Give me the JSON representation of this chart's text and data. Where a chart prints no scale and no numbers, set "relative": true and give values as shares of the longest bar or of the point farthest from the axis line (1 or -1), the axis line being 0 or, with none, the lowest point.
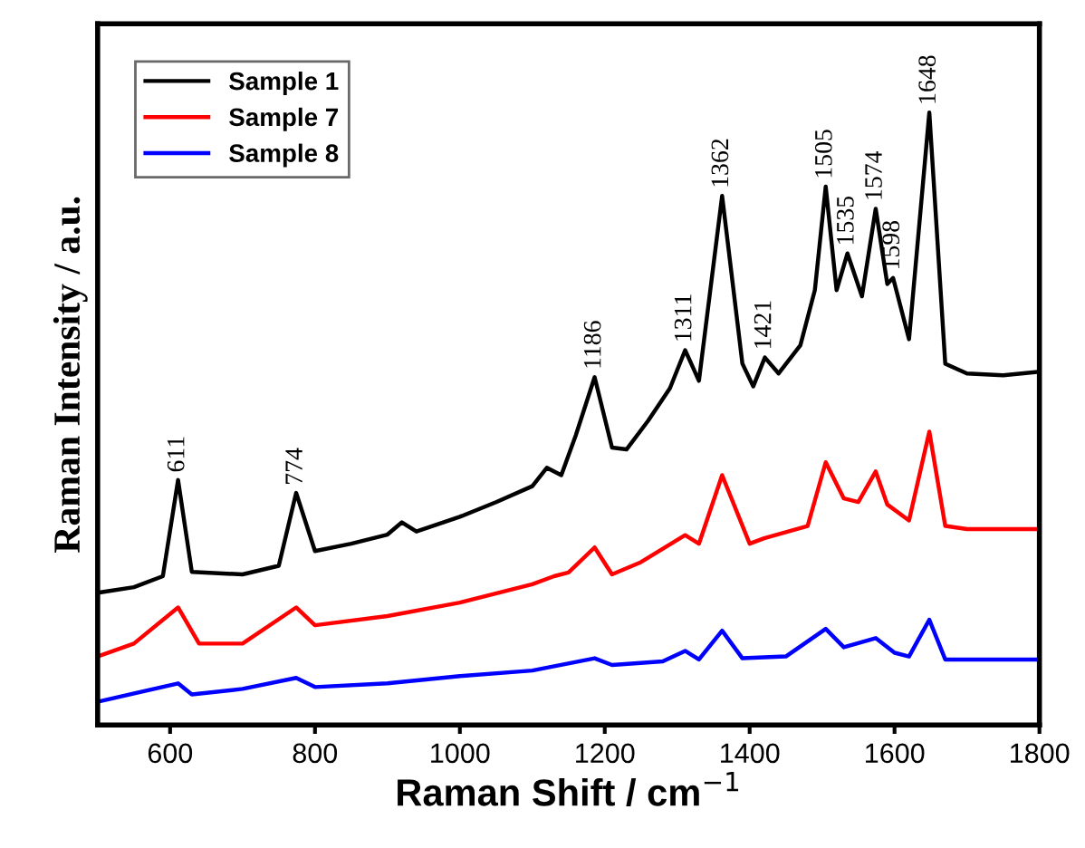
{
  "chart_data": {
    "type": "line",
    "relative": true,
    "xlabel": "Raman Shift / cm$^{−1}$",
    "ylabel": "Raman Intensity / a.u.",
    "xlim": [
      500,
      1800
    ],
    "xticks": [
      600,
      800,
      1000,
      1200,
      1400,
      1600,
      1800
    ],
    "legend": "top left",
    "grid": false,
    "marker": "none",
    "line_style": "solid",
    "series": [
      {
        "name": "Sample 1",
        "color": "#000000",
        "x": [
          500,
          550,
          590,
          611,
          630,
          700,
          750,
          774,
          800,
          850,
          900,
          920,
          940,
          1000,
          1050,
          1100,
          1120,
          1140,
          1160,
          1186,
          1210,
          1230,
          1260,
          1290,
          1311,
          1330,
          1362,
          1390,
          1405,
          1421,
          1440,
          1470,
          1490,
          1505,
          1520,
          1535,
          1555,
          1574,
          1590,
          1598,
          1620,
          1648,
          1670,
          1700,
          1750,
          1800
        ],
        "values": [
          0.216,
          0.225,
          0.243,
          0.4,
          0.25,
          0.246,
          0.26,
          0.379,
          0.284,
          0.296,
          0.311,
          0.331,
          0.316,
          0.34,
          0.364,
          0.39,
          0.42,
          0.408,
          0.473,
          0.568,
          0.453,
          0.45,
          0.497,
          0.55,
          0.612,
          0.562,
          0.864,
          0.59,
          0.553,
          0.6,
          0.574,
          0.62,
          0.71,
          0.879,
          0.71,
          0.77,
          0.7,
          0.843,
          0.72,
          0.73,
          0.63,
          1.0,
          0.59,
          0.574,
          0.571,
          0.577
        ]
      },
      {
        "name": "Sample 7",
        "color": "#ff0000",
        "x": [
          500,
          550,
          611,
          640,
          700,
          774,
          800,
          900,
          1000,
          1100,
          1130,
          1150,
          1186,
          1210,
          1250,
          1311,
          1330,
          1362,
          1400,
          1420,
          1480,
          1505,
          1530,
          1550,
          1574,
          1590,
          1620,
          1648,
          1670,
          1700,
          1800
        ],
        "values": [
          0.112,
          0.133,
          0.192,
          0.133,
          0.133,
          0.192,
          0.163,
          0.178,
          0.2,
          0.23,
          0.243,
          0.249,
          0.29,
          0.246,
          0.266,
          0.31,
          0.296,
          0.408,
          0.296,
          0.305,
          0.325,
          0.429,
          0.37,
          0.364,
          0.414,
          0.36,
          0.334,
          0.479,
          0.325,
          0.32,
          0.32
        ]
      },
      {
        "name": "Sample 8",
        "color": "#0000ff",
        "x": [
          500,
          611,
          630,
          700,
          774,
          800,
          900,
          1000,
          1100,
          1186,
          1210,
          1280,
          1311,
          1330,
          1362,
          1390,
          1450,
          1505,
          1530,
          1574,
          1600,
          1620,
          1648,
          1670,
          1800
        ],
        "values": [
          0.038,
          0.068,
          0.05,
          0.059,
          0.077,
          0.062,
          0.068,
          0.08,
          0.089,
          0.109,
          0.098,
          0.104,
          0.121,
          0.107,
          0.154,
          0.109,
          0.112,
          0.157,
          0.127,
          0.142,
          0.118,
          0.112,
          0.172,
          0.107,
          0.107
        ]
      }
    ],
    "annotations": [
      {
        "text": "611",
        "x": 611,
        "y": 0.4
      },
      {
        "text": "774",
        "x": 774,
        "y": 0.379
      },
      {
        "text": "1186",
        "x": 1186,
        "y": 0.568
      },
      {
        "text": "1311",
        "x": 1311,
        "y": 0.612
      },
      {
        "text": "1362",
        "x": 1362,
        "y": 0.864
      },
      {
        "text": "1421",
        "x": 1421,
        "y": 0.6
      },
      {
        "text": "1505",
        "x": 1505,
        "y": 0.879
      },
      {
        "text": "1535",
        "x": 1535,
        "y": 0.77
      },
      {
        "text": "1574",
        "x": 1574,
        "y": 0.843
      },
      {
        "text": "1598",
        "x": 1598,
        "y": 0.73
      },
      {
        "text": "1648",
        "x": 1648,
        "y": 1.0
      }
    ]
  }
}
